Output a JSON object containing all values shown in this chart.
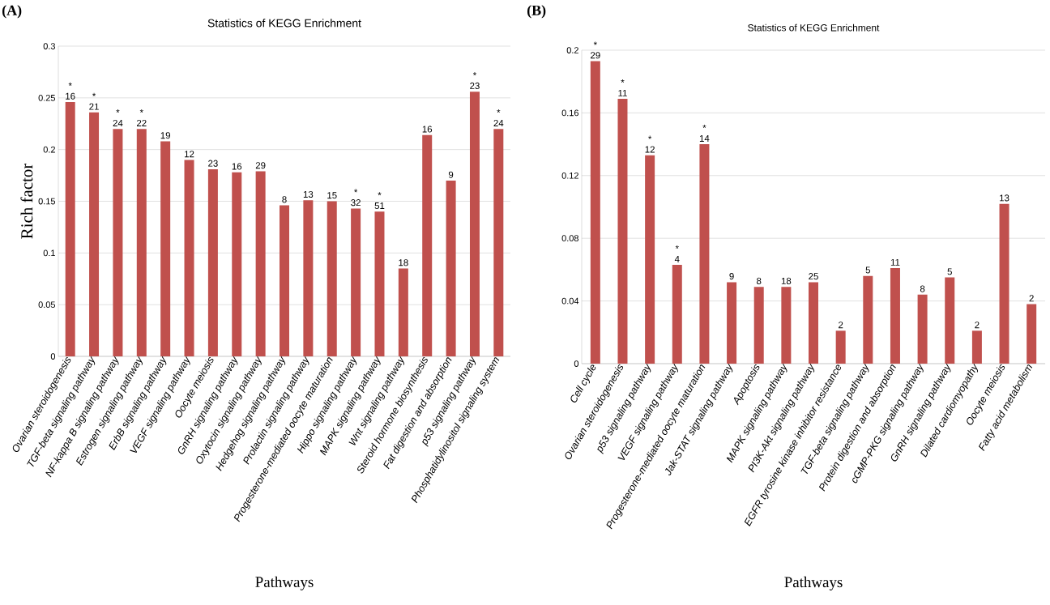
{
  "chart_data": [
    {
      "type": "bar",
      "title": "Statistics of KEGG Enrichment",
      "xlabel": "Pathways",
      "ylabel": "Rich factor",
      "categories": [
        "Ovarian steroidogenesis",
        "TGF-beta signaling pathway",
        "NF-kappa B signaling pathway",
        "Estrogen signaling pathway",
        "ErbB signaling pathway",
        "VEGF signaling pathway",
        "Oocyte meiosis",
        "GnRH signaling pathway",
        "Oxytocin signaling pathway",
        "Hedgehog signaling pathway",
        "Prolactin signaling pathway",
        "Progesterone-mediated oocyte maturation",
        "Hippo signaling pathway",
        "MAPK signaling pathway",
        "Wnt signaling pathway",
        "Steroid hormone biosynthesis",
        "Fat digestion and absorption",
        "p53 signaling pathway",
        "Phosphatidylinositol signaling system"
      ],
      "values": [
        0.246,
        0.236,
        0.22,
        0.22,
        0.208,
        0.19,
        0.181,
        0.178,
        0.179,
        0.146,
        0.151,
        0.15,
        0.143,
        0.14,
        0.085,
        0.214,
        0.17,
        0.256,
        0.22
      ],
      "color": "#c0504d",
      "ylim": [
        0,
        0.3
      ],
      "yticks": [
        0,
        0.05,
        0.1,
        0.15,
        0.2,
        0.25,
        0.3
      ],
      "grid": "y",
      "annotations": [
        "(A)",
        {
          "text": "16",
          "x": "Ovarian steroidogenesis",
          "y": 0.246
        },
        {
          "text": "21",
          "x": "TGF-beta signaling pathway",
          "y": 0.236
        },
        {
          "text": "24",
          "x": "NF-kappa B signaling pathway",
          "y": 0.22
        },
        {
          "text": "22",
          "x": "Estrogen signaling pathway",
          "y": 0.22
        },
        {
          "text": "19",
          "x": "ErbB signaling pathway",
          "y": 0.208
        },
        {
          "text": "12",
          "x": "VEGF signaling pathway",
          "y": 0.19
        },
        {
          "text": "23",
          "x": "Oocyte meiosis",
          "y": 0.181
        },
        {
          "text": "16",
          "x": "GnRH signaling pathway",
          "y": 0.178
        },
        {
          "text": "29",
          "x": "Oxytocin signaling pathway",
          "y": 0.179
        },
        {
          "text": "8",
          "x": "Hedgehog signaling pathway",
          "y": 0.146
        },
        {
          "text": "13",
          "x": "Prolactin signaling pathway",
          "y": 0.151
        },
        {
          "text": "15",
          "x": "Progesterone-mediated oocyte maturation",
          "y": 0.15
        },
        {
          "text": "32",
          "x": "Hippo signaling pathway",
          "y": 0.143
        },
        {
          "text": "51",
          "x": "MAPK signaling pathway",
          "y": 0.14
        },
        {
          "text": "18",
          "x": "Wnt signaling pathway",
          "y": 0.085
        },
        {
          "text": "16",
          "x": "Steroid hormone biosynthesis",
          "y": 0.214
        },
        {
          "text": "9",
          "x": "Fat digestion and absorption",
          "y": 0.17
        },
        {
          "text": "23",
          "x": "p53 signaling pathway",
          "y": 0.256
        },
        {
          "text": "24",
          "x": "Phosphatidylinositol signaling system",
          "y": 0.22
        },
        {
          "text": "*",
          "x": "Ovarian steroidogenesis",
          "y": 0.246
        },
        {
          "text": "*",
          "x": "TGF-beta signaling pathway",
          "y": 0.236
        },
        {
          "text": "*",
          "x": "NF-kappa B signaling pathway",
          "y": 0.22
        },
        {
          "text": "*",
          "x": "Estrogen signaling pathway",
          "y": 0.22
        },
        {
          "text": "*",
          "x": "Hippo signaling pathway",
          "y": 0.143
        },
        {
          "text": "*",
          "x": "MAPK signaling pathway",
          "y": 0.14
        },
        {
          "text": "*",
          "x": "p53 signaling pathway",
          "y": 0.256
        },
        {
          "text": "*",
          "x": "Phosphatidylinositol signaling system",
          "y": 0.22
        }
      ]
    },
    {
      "type": "bar",
      "title": "Statistics of KEGG Enrichment",
      "xlabel": "Pathways",
      "categories": [
        "Cell cycle",
        "Ovarian steroidogenesis",
        "p53 signaling pathway",
        "VEGF signaling pathway",
        "Progesterone-mediated oocyte maturation",
        "Jak-STAT signaling pathway",
        "Apoptosis",
        "MAPK signaling pathway",
        "PI3K-Akt signaling pathway",
        "EGFR tyrosine kinase inhibitor resistance",
        "TGF-beta signaling pathway",
        "Protein digestion and absorption",
        "cGMP-PKG signaling pathway",
        "GnRH signaling pathway",
        "Dilated cardiomyopathy",
        "Oocyte meiosis",
        "Fatty acid metabolism"
      ],
      "values": [
        0.193,
        0.169,
        0.133,
        0.063,
        0.14,
        0.052,
        0.049,
        0.049,
        0.052,
        0.021,
        0.056,
        0.061,
        0.044,
        0.055,
        0.021,
        0.102,
        0.038
      ],
      "color": "#c0504d",
      "ylim": [
        0,
        0.2
      ],
      "yticks": [
        0,
        0.04,
        0.08,
        0.12,
        0.16,
        0.2
      ],
      "grid": "y",
      "annotations": [
        "(B)",
        {
          "text": "29",
          "x": "Cell cycle",
          "y": 0.193
        },
        {
          "text": "11",
          "x": "Ovarian steroidogenesis",
          "y": 0.169
        },
        {
          "text": "12",
          "x": "p53 signaling pathway",
          "y": 0.133
        },
        {
          "text": "4",
          "x": "VEGF signaling pathway",
          "y": 0.063
        },
        {
          "text": "14",
          "x": "Progesterone-mediated oocyte maturation",
          "y": 0.14
        },
        {
          "text": "9",
          "x": "Jak-STAT signaling pathway",
          "y": 0.052
        },
        {
          "text": "8",
          "x": "Apoptosis",
          "y": 0.049
        },
        {
          "text": "18",
          "x": "MAPK signaling pathway",
          "y": 0.049
        },
        {
          "text": "25",
          "x": "PI3K-Akt signaling pathway",
          "y": 0.052
        },
        {
          "text": "2",
          "x": "EGFR tyrosine kinase inhibitor resistance",
          "y": 0.021
        },
        {
          "text": "5",
          "x": "TGF-beta signaling pathway",
          "y": 0.056
        },
        {
          "text": "11",
          "x": "Protein digestion and absorption",
          "y": 0.061
        },
        {
          "text": "8",
          "x": "cGMP-PKG signaling pathway",
          "y": 0.044
        },
        {
          "text": "5",
          "x": "GnRH signaling pathway",
          "y": 0.055
        },
        {
          "text": "2",
          "x": "Dilated cardiomyopathy",
          "y": 0.021
        },
        {
          "text": "13",
          "x": "Oocyte meiosis",
          "y": 0.102
        },
        {
          "text": "2",
          "x": "Fatty acid metabolism",
          "y": 0.038
        },
        {
          "text": "*",
          "x": "Cell cycle",
          "y": 0.193
        },
        {
          "text": "*",
          "x": "Ovarian steroidogenesis",
          "y": 0.169
        },
        {
          "text": "*",
          "x": "p53 signaling pathway",
          "y": 0.133
        },
        {
          "text": "*",
          "x": "VEGF signaling pathway",
          "y": 0.063
        },
        {
          "text": "*",
          "x": "Progesterone-mediated oocyte maturation",
          "y": 0.14
        }
      ]
    }
  ]
}
